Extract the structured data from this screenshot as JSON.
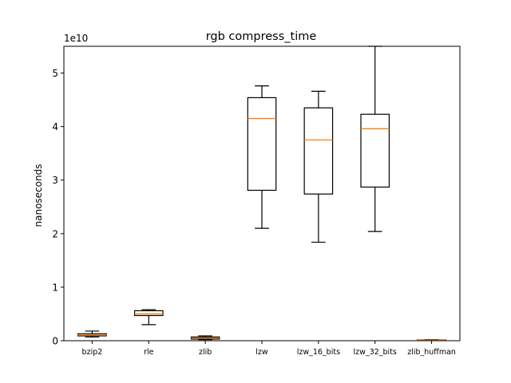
{
  "chart_data": {
    "type": "boxplot",
    "title": "rgb compress_time",
    "ylabel": "nanoseconds",
    "xlabel": "",
    "y_scale_label": "1e10",
    "ylim": [
      0,
      5.5
    ],
    "yticks": [
      0,
      1,
      2,
      3,
      4,
      5
    ],
    "ytick_labels": [
      "0",
      "1",
      "2",
      "3",
      "4",
      "5"
    ],
    "categories": [
      "bzip2",
      "rle",
      "zlib",
      "lzw",
      "lzw_16_bits",
      "lzw_32_bits",
      "zlib_huffman"
    ],
    "boxes": [
      {
        "name": "bzip2",
        "whislo": 0.07,
        "q1": 0.09,
        "med": 0.105,
        "q3": 0.13,
        "whishi": 0.18
      },
      {
        "name": "rle",
        "whislo": 0.3,
        "q1": 0.47,
        "med": 0.5,
        "q3": 0.56,
        "whishi": 0.58
      },
      {
        "name": "zlib",
        "whislo": 0.02,
        "q1": 0.03,
        "med": 0.05,
        "q3": 0.07,
        "whishi": 0.09
      },
      {
        "name": "lzw",
        "whislo": 2.1,
        "q1": 2.81,
        "med": 4.15,
        "q3": 4.54,
        "whishi": 4.76
      },
      {
        "name": "lzw_16_bits",
        "whislo": 1.84,
        "q1": 2.74,
        "med": 3.75,
        "q3": 4.35,
        "whishi": 4.66
      },
      {
        "name": "lzw_32_bits",
        "whislo": 2.04,
        "q1": 2.87,
        "med": 3.96,
        "q3": 4.23,
        "whishi": 5.5
      },
      {
        "name": "zlib_huffman",
        "whislo": 0.005,
        "q1": 0.008,
        "med": 0.012,
        "q3": 0.016,
        "whishi": 0.02
      }
    ],
    "colors": {
      "box": "#000000",
      "median": "#ff7f0e"
    },
    "grid": false
  }
}
